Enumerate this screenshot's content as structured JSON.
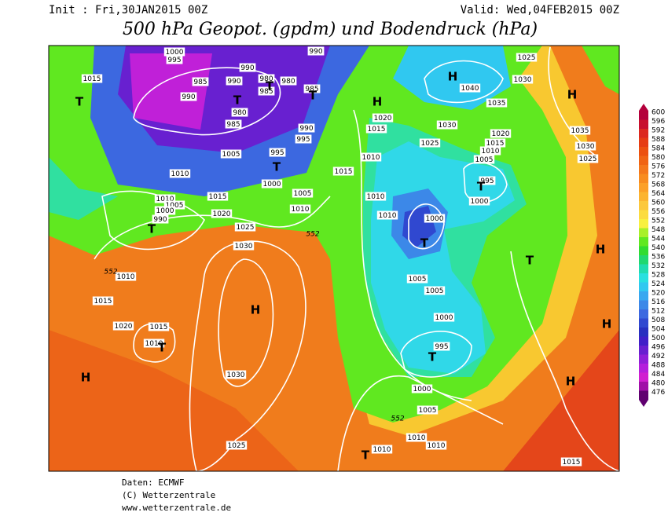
{
  "header": {
    "init": "Init : Fri,30JAN2015 00Z",
    "valid": "Valid: Wed,04FEB2015 00Z",
    "title": "500 hPa Geopot. (gpdm) und Bodendruck (hPa)"
  },
  "map": {
    "pressure_labels": [
      "1000",
      "995",
      "1015",
      "985",
      "990",
      "990",
      "985",
      "980",
      "980",
      "985",
      "990",
      "990",
      "980",
      "985",
      "990",
      "995",
      "1005",
      "995",
      "1010",
      "1000",
      "1005",
      "1010",
      "1005",
      "1000",
      "990",
      "1015",
      "1010",
      "1020",
      "1025",
      "1030",
      "1010",
      "1015",
      "1020",
      "1015",
      "1010",
      "1030",
      "1025",
      "1015",
      "1010",
      "1015",
      "1020",
      "1010",
      "1010",
      "1000",
      "1025",
      "1030",
      "1040",
      "1035",
      "1030",
      "1025",
      "1020",
      "1015",
      "1010",
      "1005",
      "995",
      "1000",
      "1035",
      "1030",
      "1025",
      "1005",
      "1005",
      "1000",
      "995",
      "1000",
      "1005",
      "1010",
      "1010",
      "1010",
      "1015"
    ],
    "contour_labels": [
      "552",
      "552",
      "552"
    ],
    "centers": [
      "T",
      "T",
      "T",
      "T",
      "T",
      "T",
      "H",
      "H",
      "H",
      "T",
      "T",
      "T",
      "H",
      "H",
      "H",
      "T",
      "H",
      "T",
      "H",
      "T"
    ]
  },
  "legend": {
    "labels": [
      600,
      596,
      592,
      588,
      584,
      580,
      576,
      572,
      568,
      564,
      560,
      556,
      552,
      548,
      544,
      540,
      536,
      532,
      528,
      524,
      520,
      516,
      512,
      508,
      504,
      500,
      496,
      492,
      488,
      484,
      480,
      476
    ],
    "colors": [
      "#b4003c",
      "#c8102e",
      "#dc2820",
      "#e63c14",
      "#ec5010",
      "#f06414",
      "#f4781c",
      "#f88c20",
      "#fca028",
      "#fcb430",
      "#fcc83c",
      "#fcdc40",
      "#f8f040",
      "#a8f028",
      "#60e820",
      "#30dc30",
      "#20d870",
      "#20dcb0",
      "#28e0e0",
      "#30c8f0",
      "#38a8f0",
      "#3c88e8",
      "#3c68e0",
      "#3048d0",
      "#2830c0",
      "#4020c8",
      "#6820d0",
      "#9020d8",
      "#b420dc",
      "#d020d0",
      "#a010a8",
      "#600070"
    ]
  },
  "footer": {
    "lines": [
      "Daten: ECMWF",
      "(C) Wetterzentrale",
      "www.wetterzentrale.de"
    ]
  }
}
